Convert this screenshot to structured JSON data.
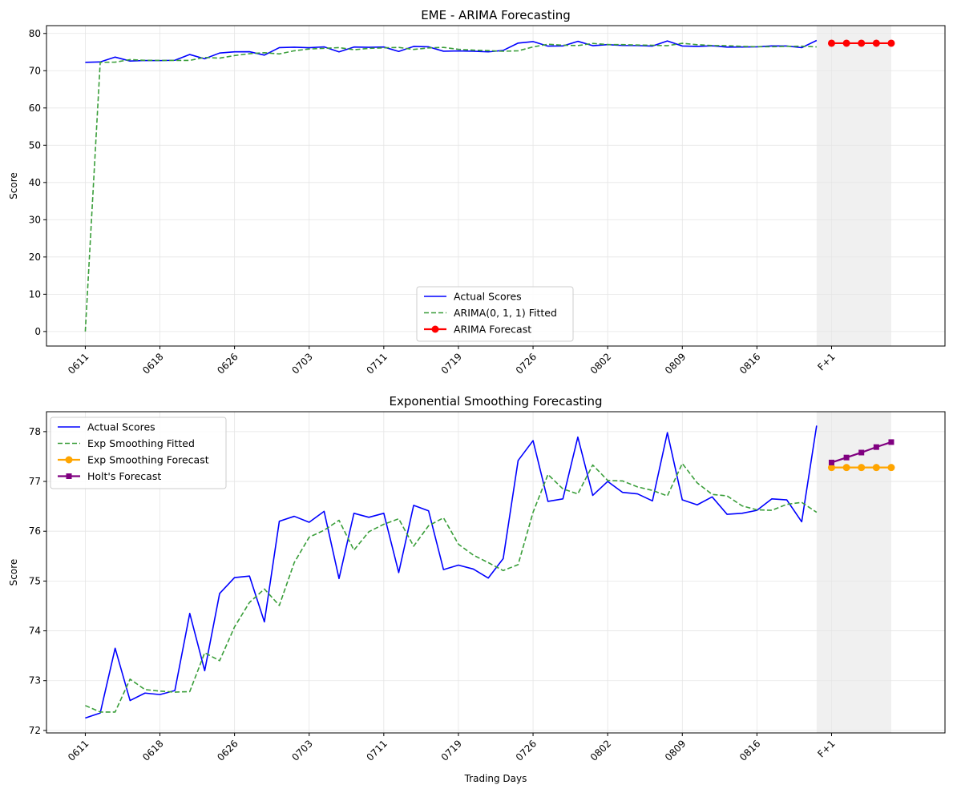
{
  "figure": {
    "background": "#ffffff"
  },
  "colors": {
    "actual": "#0000ff",
    "fitted": "#3a9e3a",
    "arima_forecast": "#ff0000",
    "es_forecast": "#ffa500",
    "holt_forecast": "#800080",
    "forecast_region": "#f0f0f0",
    "grid": "#e5e5e5"
  },
  "chart_data": [
    {
      "type": "line",
      "title": "EME - ARIMA Forecasting",
      "xlabel": "",
      "ylabel": "Score",
      "ylim": [
        -3.9,
        82.1
      ],
      "xlim": [
        -2.6,
        57.6
      ],
      "yticks": [
        0,
        10,
        20,
        30,
        40,
        50,
        60,
        70,
        80
      ],
      "xticks": [
        {
          "x": 0,
          "label": "0611"
        },
        {
          "x": 5,
          "label": "0618"
        },
        {
          "x": 10,
          "label": "0626"
        },
        {
          "x": 15,
          "label": "0703"
        },
        {
          "x": 20,
          "label": "0711"
        },
        {
          "x": 25,
          "label": "0719"
        },
        {
          "x": 30,
          "label": "0726"
        },
        {
          "x": 35,
          "label": "0802"
        },
        {
          "x": 40,
          "label": "0809"
        },
        {
          "x": 45,
          "label": "0816"
        },
        {
          "x": 50,
          "label": "F+1"
        }
      ],
      "forecast_region": [
        49,
        54
      ],
      "legend_position": "lower-center",
      "legend": [
        "Actual Scores",
        "ARIMA(0, 1, 1) Fitted",
        "ARIMA Forecast"
      ],
      "series": [
        {
          "name": "Actual Scores",
          "style": "solid",
          "color_key": "actual",
          "x": [
            0,
            1,
            2,
            3,
            4,
            5,
            6,
            7,
            8,
            9,
            10,
            11,
            12,
            13,
            14,
            15,
            16,
            17,
            18,
            19,
            20,
            21,
            22,
            23,
            24,
            25,
            26,
            27,
            28,
            29,
            30,
            31,
            32,
            33,
            34,
            35,
            36,
            37,
            38,
            39,
            40,
            41,
            42,
            43,
            44,
            45,
            46,
            47,
            48,
            49
          ],
          "values": [
            72.25,
            72.35,
            73.65,
            72.6,
            72.75,
            72.72,
            72.8,
            74.35,
            73.2,
            74.75,
            75.07,
            75.1,
            74.18,
            76.2,
            76.3,
            76.18,
            76.4,
            75.05,
            76.36,
            76.28,
            76.36,
            75.17,
            76.52,
            76.41,
            75.23,
            75.32,
            75.24,
            75.06,
            75.45,
            77.42,
            77.82,
            76.6,
            76.65,
            77.89,
            76.72,
            77.0,
            76.78,
            76.75,
            76.61,
            77.98,
            76.63,
            76.53,
            76.69,
            76.34,
            76.36,
            76.42,
            76.65,
            76.63,
            76.19,
            78.12
          ]
        },
        {
          "name": "ARIMA(0, 1, 1) Fitted",
          "style": "dashed",
          "color_key": "fitted",
          "x": [
            0,
            1,
            2,
            3,
            4,
            5,
            6,
            7,
            8,
            9,
            10,
            11,
            12,
            13,
            14,
            15,
            16,
            17,
            18,
            19,
            20,
            21,
            22,
            23,
            24,
            25,
            26,
            27,
            28,
            29,
            30,
            31,
            32,
            33,
            34,
            35,
            36,
            37,
            38,
            39,
            40,
            41,
            42,
            43,
            44,
            45,
            46,
            47,
            48,
            49
          ],
          "values": [
            0,
            72.25,
            72.3,
            72.98,
            72.79,
            72.77,
            72.75,
            72.77,
            73.56,
            73.38,
            74.07,
            74.57,
            74.84,
            74.51,
            75.35,
            75.83,
            76.0,
            76.2,
            75.63,
            76.0,
            76.14,
            76.25,
            75.71,
            76.11,
            76.26,
            75.75,
            75.53,
            75.39,
            75.22,
            75.34,
            76.38,
            77.1,
            76.85,
            76.75,
            77.32,
            77.02,
            77.01,
            76.9,
            76.83,
            76.72,
            77.35,
            76.99,
            76.76,
            76.72,
            76.53,
            76.45,
            76.43,
            76.54,
            76.58,
            76.39
          ]
        },
        {
          "name": "ARIMA Forecast",
          "style": "solid-marker-circle",
          "color_key": "arima_forecast",
          "x": [
            50,
            51,
            52,
            53,
            54
          ],
          "values": [
            77.38,
            77.38,
            77.38,
            77.38,
            77.38
          ]
        }
      ]
    },
    {
      "type": "line",
      "title": "Exponential Smoothing Forecasting",
      "xlabel": "Trading Days",
      "ylabel": "Score",
      "ylim": [
        71.95,
        78.4
      ],
      "xlim": [
        -2.6,
        57.6
      ],
      "yticks": [
        72,
        73,
        74,
        75,
        76,
        77,
        78
      ],
      "xticks": [
        {
          "x": 0,
          "label": "0611"
        },
        {
          "x": 5,
          "label": "0618"
        },
        {
          "x": 10,
          "label": "0626"
        },
        {
          "x": 15,
          "label": "0703"
        },
        {
          "x": 20,
          "label": "0711"
        },
        {
          "x": 25,
          "label": "0719"
        },
        {
          "x": 30,
          "label": "0726"
        },
        {
          "x": 35,
          "label": "0802"
        },
        {
          "x": 40,
          "label": "0809"
        },
        {
          "x": 45,
          "label": "0816"
        },
        {
          "x": 50,
          "label": "F+1"
        }
      ],
      "forecast_region": [
        49,
        54
      ],
      "legend_position": "upper-left",
      "legend": [
        "Actual Scores",
        "Exp Smoothing Fitted",
        "Exp Smoothing Forecast",
        "Holt's Forecast"
      ],
      "series": [
        {
          "name": "Actual Scores",
          "style": "solid",
          "color_key": "actual",
          "x": [
            0,
            1,
            2,
            3,
            4,
            5,
            6,
            7,
            8,
            9,
            10,
            11,
            12,
            13,
            14,
            15,
            16,
            17,
            18,
            19,
            20,
            21,
            22,
            23,
            24,
            25,
            26,
            27,
            28,
            29,
            30,
            31,
            32,
            33,
            34,
            35,
            36,
            37,
            38,
            39,
            40,
            41,
            42,
            43,
            44,
            45,
            46,
            47,
            48,
            49
          ],
          "values": [
            72.25,
            72.35,
            73.65,
            72.6,
            72.75,
            72.72,
            72.8,
            74.35,
            73.2,
            74.75,
            75.07,
            75.1,
            74.18,
            76.2,
            76.3,
            76.18,
            76.4,
            75.05,
            76.36,
            76.28,
            76.36,
            75.17,
            76.52,
            76.41,
            75.23,
            75.32,
            75.24,
            75.06,
            75.45,
            77.42,
            77.82,
            76.6,
            76.65,
            77.89,
            76.72,
            77.0,
            76.78,
            76.75,
            76.61,
            77.98,
            76.63,
            76.53,
            76.69,
            76.34,
            76.36,
            76.42,
            76.65,
            76.63,
            76.19,
            78.12
          ]
        },
        {
          "name": "Exp Smoothing Fitted",
          "style": "dashed",
          "color_key": "fitted",
          "x": [
            0,
            1,
            2,
            3,
            4,
            5,
            6,
            7,
            8,
            9,
            10,
            11,
            12,
            13,
            14,
            15,
            16,
            17,
            18,
            19,
            20,
            21,
            22,
            23,
            24,
            25,
            26,
            27,
            28,
            29,
            30,
            31,
            32,
            33,
            34,
            35,
            36,
            37,
            38,
            39,
            40,
            41,
            42,
            43,
            44,
            45,
            46,
            47,
            48,
            49
          ],
          "values": [
            72.5,
            72.37,
            72.37,
            73.03,
            72.82,
            72.79,
            72.77,
            72.78,
            73.56,
            73.4,
            74.08,
            74.57,
            74.84,
            74.51,
            75.37,
            75.88,
            76.02,
            76.22,
            75.62,
            75.99,
            76.14,
            76.25,
            75.7,
            76.11,
            76.27,
            75.74,
            75.52,
            75.37,
            75.21,
            75.33,
            76.38,
            77.14,
            76.85,
            76.75,
            77.33,
            77.02,
            77.01,
            76.89,
            76.82,
            76.71,
            77.36,
            76.97,
            76.74,
            76.71,
            76.51,
            76.43,
            76.42,
            76.54,
            76.58,
            76.38
          ]
        },
        {
          "name": "Exp Smoothing Forecast",
          "style": "solid-marker-circle",
          "color_key": "es_forecast",
          "x": [
            50,
            51,
            52,
            53,
            54
          ],
          "values": [
            77.28,
            77.28,
            77.28,
            77.28,
            77.28
          ]
        },
        {
          "name": "Holt's Forecast",
          "style": "solid-marker-square",
          "color_key": "holt_forecast",
          "x": [
            50,
            51,
            52,
            53,
            54
          ],
          "values": [
            77.38,
            77.48,
            77.58,
            77.69,
            77.79
          ]
        }
      ]
    }
  ]
}
